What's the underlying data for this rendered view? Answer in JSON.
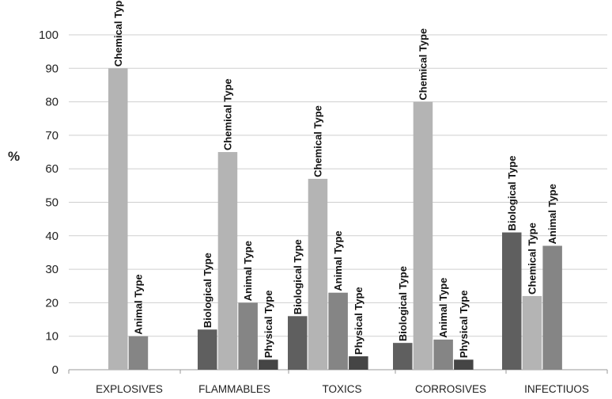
{
  "chart_data": {
    "type": "bar",
    "title": "",
    "xlabel": "",
    "ylabel": "%",
    "ylim": [
      0,
      100
    ],
    "yticks": [
      0,
      10,
      20,
      30,
      40,
      50,
      60,
      70,
      80,
      90,
      100
    ],
    "grid": true,
    "legend": "none",
    "colors": {
      "Biological Type": "#5f5f5f",
      "Chemical Type": "#b4b4b4",
      "Animal Type": "#858585",
      "Physical Type": "#454545"
    },
    "groups": [
      {
        "category": "EXPLOSIVES",
        "bars": [
          {
            "series": "Chemical Type",
            "value": 90
          },
          {
            "series": "Animal Type",
            "value": 10
          }
        ]
      },
      {
        "category": "FLAMMABLES",
        "bars": [
          {
            "series": "Biological Type",
            "value": 12
          },
          {
            "series": "Chemical Type",
            "value": 65
          },
          {
            "series": "Animal Type",
            "value": 20
          },
          {
            "series": "Physical Type",
            "value": 3
          }
        ]
      },
      {
        "category": "TOXICS",
        "bars": [
          {
            "series": "Biological Type",
            "value": 16
          },
          {
            "series": "Chemical Type",
            "value": 57
          },
          {
            "series": "Animal Type",
            "value": 23
          },
          {
            "series": "Physical Type",
            "value": 4
          }
        ]
      },
      {
        "category": "CORROSIVES",
        "bars": [
          {
            "series": "Biological Type",
            "value": 8
          },
          {
            "series": "Chemical Type",
            "value": 80
          },
          {
            "series": "Animal Type",
            "value": 9
          },
          {
            "series": "Physical Type",
            "value": 3
          }
        ]
      },
      {
        "category": "INFECTIUOS",
        "bars": [
          {
            "series": "Biological Type",
            "value": 41
          },
          {
            "series": "Chemical Type",
            "value": 22
          },
          {
            "series": "Animal Type",
            "value": 37
          }
        ]
      }
    ]
  }
}
